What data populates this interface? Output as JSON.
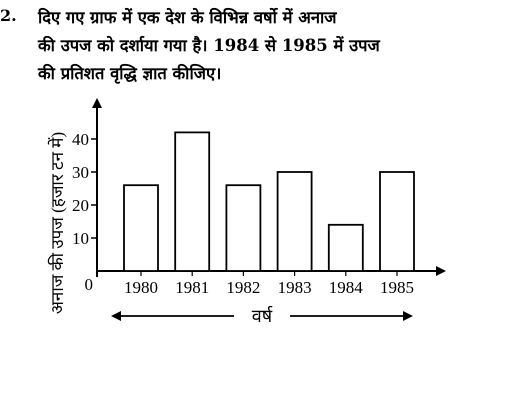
{
  "question": {
    "number": "2.",
    "lines": [
      "दिए गए ग्राफ में एक देश के विभिन्न वर्षो में अनाज",
      "की उपज को दर्शाया गया है। 1984 से 1985 में उपज",
      "की प्रतिशत वृद्धि ज्ञात कीजिए।"
    ]
  },
  "chart_data": {
    "type": "bar",
    "categories": [
      "1980",
      "1981",
      "1982",
      "1983",
      "1984",
      "1985"
    ],
    "values": [
      26,
      42,
      26,
      30,
      14,
      30
    ],
    "xlabel": "वर्ष",
    "ylabel": "अनाज की उपज (हजार टन में)",
    "yticks": [
      10,
      20,
      30,
      40
    ],
    "origin_label": "0",
    "ylim": [
      0,
      50
    ],
    "grid": false,
    "bar_fill": "#ffffff",
    "bar_stroke": "#000000"
  }
}
